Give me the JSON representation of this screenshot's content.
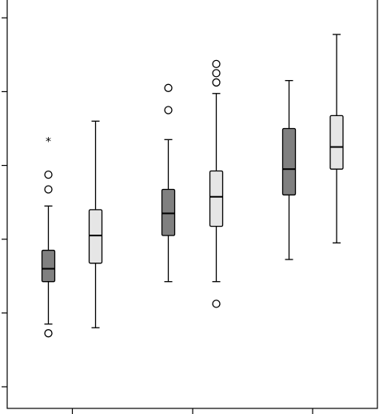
{
  "chart_data": {
    "type": "boxplot",
    "title": "",
    "xlabel": "",
    "ylabel": "",
    "ylim": [
      0,
      100
    ],
    "grid": false,
    "x_tick_labels": [],
    "y_tick_labels": [],
    "colors": {
      "dark": "#808080",
      "light": "#e6e6e6",
      "stroke": "#000000"
    },
    "groups": [
      {
        "boxes": [
          {
            "fill": "dark",
            "whisker_low": 17,
            "q1": 28.5,
            "median": 32,
            "q3": 37,
            "whisker_high": 49,
            "outliers": [
              {
                "value": 14.5,
                "marker": "circle"
              },
              {
                "value": 53.5,
                "marker": "circle"
              },
              {
                "value": 57.5,
                "marker": "circle"
              },
              {
                "value": 66.5,
                "marker": "star"
              }
            ]
          },
          {
            "fill": "light",
            "whisker_low": 16,
            "q1": 33.5,
            "median": 41,
            "q3": 48,
            "whisker_high": 72,
            "outliers": []
          }
        ]
      },
      {
        "boxes": [
          {
            "fill": "dark",
            "whisker_low": 28.5,
            "q1": 41,
            "median": 47,
            "q3": 53.5,
            "whisker_high": 67,
            "outliers": [
              {
                "value": 75,
                "marker": "circle"
              },
              {
                "value": 81,
                "marker": "circle"
              }
            ]
          },
          {
            "fill": "light",
            "whisker_low": 28.5,
            "q1": 43.5,
            "median": 51.5,
            "q3": 58.5,
            "whisker_high": 79.5,
            "outliers": [
              {
                "value": 22.5,
                "marker": "circle"
              },
              {
                "value": 82.5,
                "marker": "circle"
              },
              {
                "value": 85,
                "marker": "circle"
              },
              {
                "value": 87.5,
                "marker": "circle"
              }
            ]
          }
        ]
      },
      {
        "boxes": [
          {
            "fill": "dark",
            "whisker_low": 34.5,
            "q1": 52,
            "median": 59,
            "q3": 70,
            "whisker_high": 83,
            "outliers": []
          },
          {
            "fill": "light",
            "whisker_low": 39,
            "q1": 59,
            "median": 65,
            "q3": 73.5,
            "whisker_high": 95.5,
            "outliers": []
          }
        ]
      }
    ]
  }
}
